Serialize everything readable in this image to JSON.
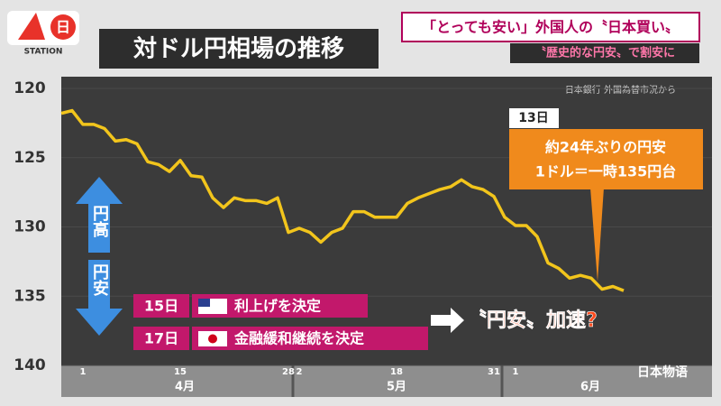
{
  "header": {
    "logo": "STATION",
    "logo_day": "日",
    "headline": "「とっても安い」外国人の〝日本買い〟",
    "subheadline": "〝歴史的な円安〟で割安に",
    "watermark": "日本物语"
  },
  "chart_data": {
    "type": "line",
    "title": "対ドル円相場の推移",
    "source": "日本銀行 外国為替市況から",
    "y_reversed": true,
    "ylim": [
      120,
      140
    ],
    "yticks": [
      120,
      125,
      130,
      135,
      140
    ],
    "categories": [
      null,
      null,
      "1",
      null,
      null,
      null,
      null,
      null,
      null,
      null,
      null,
      "15",
      null,
      null,
      null,
      null,
      null,
      null,
      null,
      null,
      null,
      "28",
      "2",
      null,
      null,
      null,
      null,
      null,
      null,
      null,
      null,
      "18",
      null,
      null,
      null,
      null,
      null,
      null,
      null,
      null,
      "31",
      null,
      "1",
      null,
      null,
      null,
      null,
      null,
      null,
      null,
      null,
      null,
      null
    ],
    "x_groups": [
      "4月",
      "5月",
      "6月"
    ],
    "series": [
      {
        "name": "円相場",
        "color": "#f2c51c",
        "values": [
          121.8,
          121.6,
          122.6,
          122.6,
          122.9,
          123.8,
          123.7,
          124.0,
          125.3,
          125.5,
          126.0,
          125.2,
          126.3,
          126.4,
          127.9,
          128.6,
          127.9,
          128.1,
          128.1,
          128.3,
          127.9,
          130.4,
          130.1,
          130.4,
          131.1,
          130.4,
          130.1,
          128.9,
          128.9,
          129.3,
          129.3,
          129.3,
          128.3,
          127.9,
          127.6,
          127.3,
          127.1,
          126.6,
          127.1,
          127.3,
          127.8,
          129.3,
          129.9,
          129.9,
          130.7,
          132.6,
          133.0,
          133.7,
          133.5,
          133.7,
          134.5,
          134.3,
          134.6
        ]
      }
    ],
    "annotations": {
      "callout_day": "13日",
      "callout_line1": "約24年ぶりの円安",
      "callout_line2": "1ドル＝一時135円台",
      "strong": "円高",
      "weak": "円安",
      "event1_day": "15日",
      "event1_text": "利上げを決定",
      "event2_day": "17日",
      "event2_text": "金融緩和継続を決定",
      "conclusion": "〝円安〟加速?"
    }
  }
}
